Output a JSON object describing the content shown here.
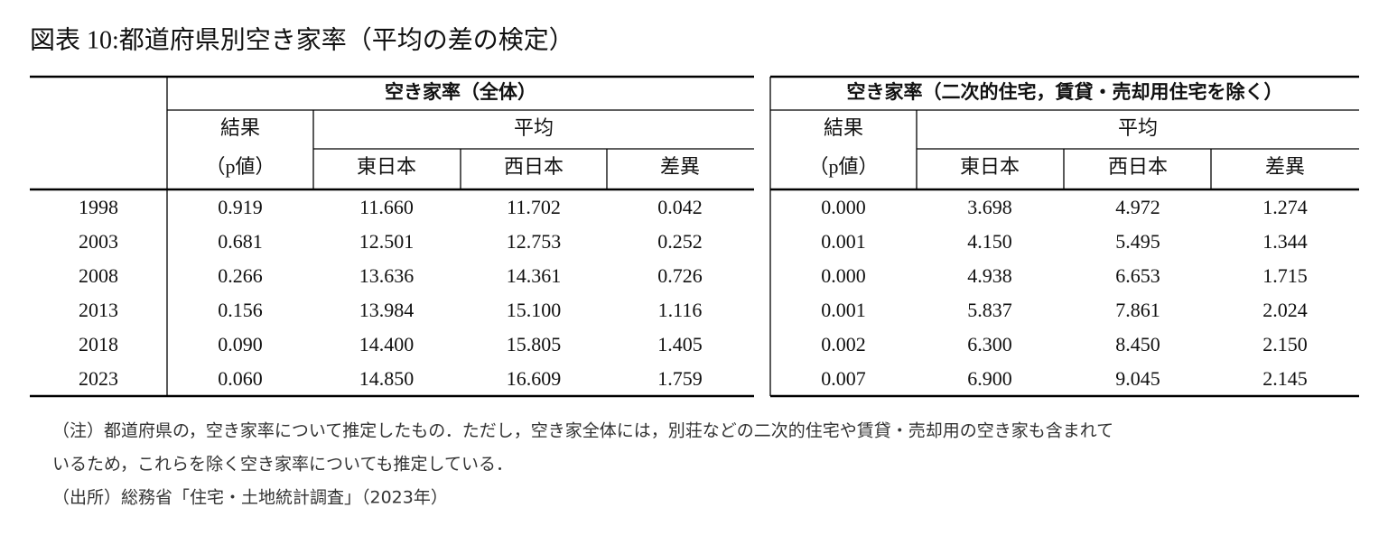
{
  "title": "図表 10:都道府県別空き家率（平均の差の検定）",
  "table": {
    "years": [
      "1998",
      "2003",
      "2008",
      "2013",
      "2018",
      "2023"
    ],
    "groups": [
      {
        "title": "空き家率（全体）",
        "result_header": [
          "結果",
          "（p値）"
        ],
        "mean_header": "平均",
        "columns": [
          "東日本",
          "西日本",
          "差異"
        ],
        "rows": [
          [
            "0.919",
            "11.660",
            "11.702",
            "0.042"
          ],
          [
            "0.681",
            "12.501",
            "12.753",
            "0.252"
          ],
          [
            "0.266",
            "13.636",
            "14.361",
            "0.726"
          ],
          [
            "0.156",
            "13.984",
            "15.100",
            "1.116"
          ],
          [
            "0.090",
            "14.400",
            "15.805",
            "1.405"
          ],
          [
            "0.060",
            "14.850",
            "16.609",
            "1.759"
          ]
        ]
      },
      {
        "title": "空き家率（二次的住宅，賃貸・売却用住宅を除く）",
        "result_header": [
          "結果",
          "（p値）"
        ],
        "mean_header": "平均",
        "columns": [
          "東日本",
          "西日本",
          "差異"
        ],
        "rows": [
          [
            "0.000",
            "3.698",
            "4.972",
            "1.274"
          ],
          [
            "0.001",
            "4.150",
            "5.495",
            "1.344"
          ],
          [
            "0.000",
            "4.938",
            "6.653",
            "1.715"
          ],
          [
            "0.001",
            "5.837",
            "7.861",
            "2.024"
          ],
          [
            "0.002",
            "6.300",
            "8.450",
            "2.150"
          ],
          [
            "0.007",
            "6.900",
            "9.045",
            "2.145"
          ]
        ]
      }
    ]
  },
  "notes": [
    "（注）都道府県の，空き家率について推定したもの．ただし，空き家全体には，別荘などの二次的住宅や賃貸・売却用の空き家も含まれて",
    "いるため，これらを除く空き家率についても推定している．",
    "（出所）総務省「住宅・土地統計調査」（2023年）"
  ]
}
